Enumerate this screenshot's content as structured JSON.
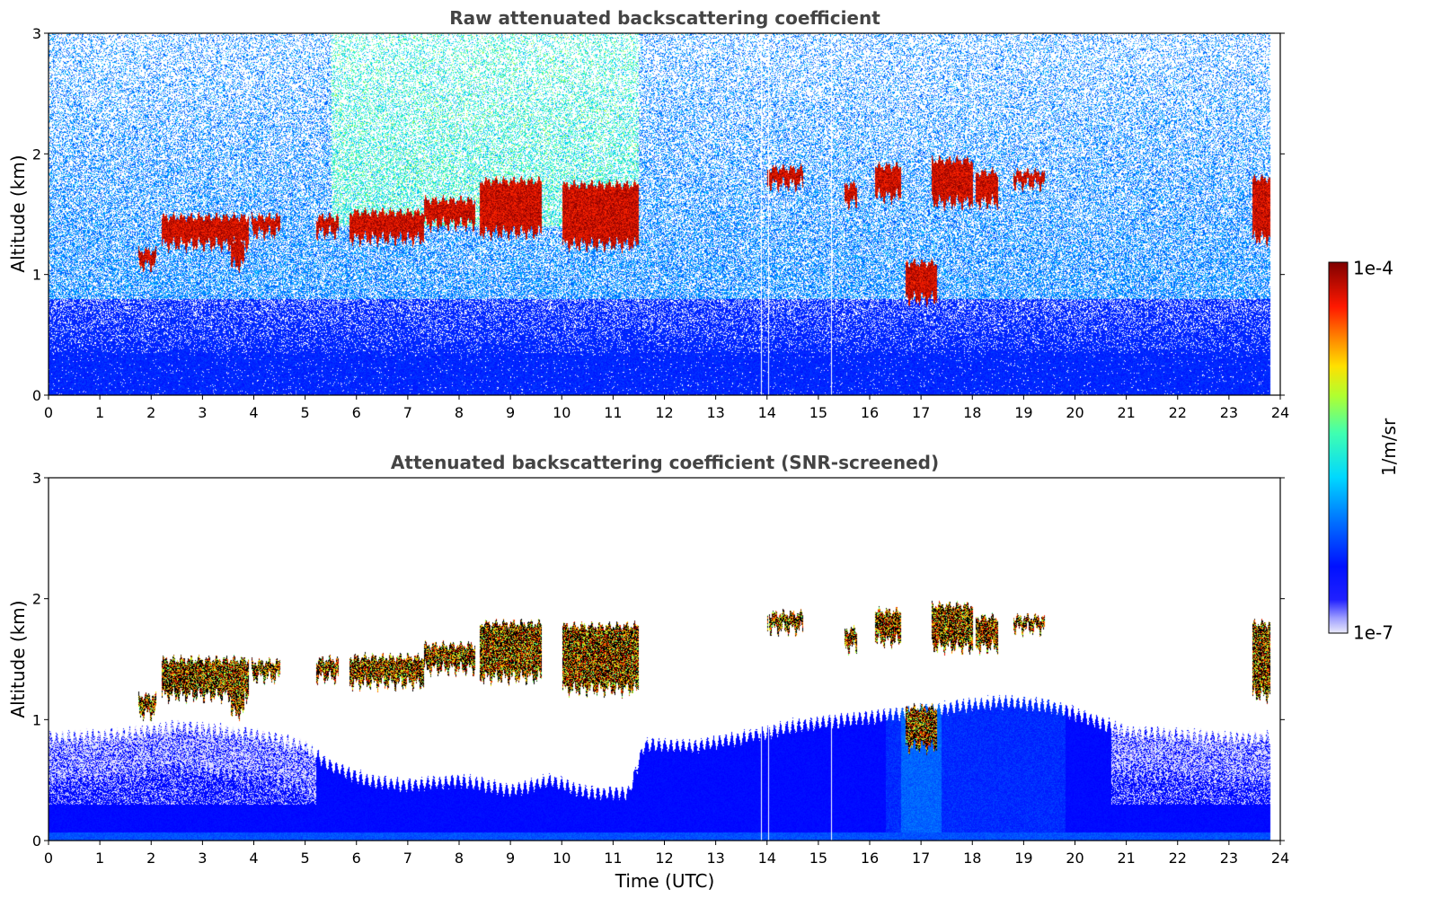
{
  "chart_data": [
    {
      "type": "heatmap",
      "title": "Raw attenuated backscattering coefficient",
      "xlabel": "",
      "ylabel": "Altitude (km)",
      "xlim": [
        0,
        24
      ],
      "ylim": [
        0,
        3
      ],
      "x_ticks": [
        "0",
        "1",
        "2",
        "3",
        "4",
        "5",
        "6",
        "7",
        "8",
        "9",
        "10",
        "11",
        "12",
        "13",
        "14",
        "15",
        "16",
        "17",
        "18",
        "19",
        "20",
        "21",
        "22",
        "23",
        "24"
      ],
      "y_ticks": [
        "0",
        "1",
        "2",
        "3"
      ],
      "data_end_hour": 23.8,
      "gaps_hours": [
        13.88,
        14.02,
        15.25
      ],
      "aerosol_layer_top_km": 0.8,
      "noise_level": "high",
      "cloud_layers": [
        {
          "start": 1.75,
          "end": 2.1,
          "base_km": 1.08,
          "top_km": 1.2
        },
        {
          "start": 2.2,
          "end": 3.9,
          "base_km": 1.25,
          "top_km": 1.48
        },
        {
          "start": 3.55,
          "end": 3.8,
          "base_km": 1.08,
          "top_km": 1.25
        },
        {
          "start": 3.95,
          "end": 4.5,
          "base_km": 1.35,
          "top_km": 1.48
        },
        {
          "start": 5.2,
          "end": 5.65,
          "base_km": 1.35,
          "top_km": 1.48
        },
        {
          "start": 5.85,
          "end": 7.3,
          "base_km": 1.3,
          "top_km": 1.52
        },
        {
          "start": 7.3,
          "end": 8.3,
          "base_km": 1.42,
          "top_km": 1.62
        },
        {
          "start": 8.4,
          "end": 9.6,
          "base_km": 1.35,
          "top_km": 1.78
        },
        {
          "start": 10.0,
          "end": 11.5,
          "base_km": 1.25,
          "top_km": 1.75
        },
        {
          "start": 14.0,
          "end": 14.7,
          "base_km": 1.75,
          "top_km": 1.88
        },
        {
          "start": 15.5,
          "end": 15.75,
          "base_km": 1.6,
          "top_km": 1.75
        },
        {
          "start": 16.1,
          "end": 16.6,
          "base_km": 1.65,
          "top_km": 1.9
        },
        {
          "start": 16.7,
          "end": 17.3,
          "base_km": 0.8,
          "top_km": 1.1
        },
        {
          "start": 17.2,
          "end": 18.0,
          "base_km": 1.6,
          "top_km": 1.95
        },
        {
          "start": 18.05,
          "end": 18.5,
          "base_km": 1.6,
          "top_km": 1.85
        },
        {
          "start": 18.8,
          "end": 19.4,
          "base_km": 1.75,
          "top_km": 1.85
        },
        {
          "start": 23.45,
          "end": 23.8,
          "base_km": 1.3,
          "top_km": 1.8
        }
      ]
    },
    {
      "type": "heatmap",
      "title": "Attenuated backscattering coefficient (SNR-screened)",
      "xlabel": "Time (UTC)",
      "ylabel": "Altitude (km)",
      "xlim": [
        0,
        24
      ],
      "ylim": [
        0,
        3
      ],
      "x_ticks": [
        "0",
        "1",
        "2",
        "3",
        "4",
        "5",
        "6",
        "7",
        "8",
        "9",
        "10",
        "11",
        "12",
        "13",
        "14",
        "15",
        "16",
        "17",
        "18",
        "19",
        "20",
        "21",
        "22",
        "23",
        "24"
      ],
      "y_ticks": [
        "0",
        "1",
        "2",
        "3"
      ],
      "data_end_hour": 23.8,
      "gaps_hours": [
        13.88,
        14.02,
        15.25
      ],
      "noise_level": "screened",
      "aerosol_top_profile": [
        [
          0,
          0.85
        ],
        [
          1.5,
          0.88
        ],
        [
          2.5,
          0.95
        ],
        [
          4.0,
          0.88
        ],
        [
          5.0,
          0.78
        ],
        [
          5.5,
          0.62
        ],
        [
          6.2,
          0.5
        ],
        [
          7.0,
          0.46
        ],
        [
          8.0,
          0.5
        ],
        [
          9.0,
          0.42
        ],
        [
          9.8,
          0.5
        ],
        [
          10.5,
          0.4
        ],
        [
          11.3,
          0.4
        ],
        [
          11.6,
          0.8
        ],
        [
          12.5,
          0.78
        ],
        [
          13.5,
          0.85
        ],
        [
          14.5,
          0.95
        ],
        [
          15.5,
          1.0
        ],
        [
          16.5,
          1.05
        ],
        [
          17.5,
          1.1
        ],
        [
          18.5,
          1.15
        ],
        [
          19.5,
          1.12
        ],
        [
          20.0,
          1.05
        ],
        [
          21.0,
          0.9
        ],
        [
          22.0,
          0.88
        ],
        [
          23.0,
          0.85
        ],
        [
          23.8,
          0.85
        ]
      ],
      "cloud_layers": [
        {
          "start": 1.75,
          "end": 2.1,
          "base_km": 1.05,
          "top_km": 1.2
        },
        {
          "start": 2.2,
          "end": 3.9,
          "base_km": 1.2,
          "top_km": 1.5
        },
        {
          "start": 3.55,
          "end": 3.8,
          "base_km": 1.05,
          "top_km": 1.25
        },
        {
          "start": 3.95,
          "end": 4.5,
          "base_km": 1.35,
          "top_km": 1.48
        },
        {
          "start": 5.2,
          "end": 5.65,
          "base_km": 1.35,
          "top_km": 1.5
        },
        {
          "start": 5.85,
          "end": 7.3,
          "base_km": 1.3,
          "top_km": 1.52
        },
        {
          "start": 7.3,
          "end": 8.3,
          "base_km": 1.42,
          "top_km": 1.62
        },
        {
          "start": 8.4,
          "end": 9.6,
          "base_km": 1.35,
          "top_km": 1.8
        },
        {
          "start": 10.0,
          "end": 11.5,
          "base_km": 1.25,
          "top_km": 1.78
        },
        {
          "start": 14.0,
          "end": 14.7,
          "base_km": 1.75,
          "top_km": 1.88
        },
        {
          "start": 15.5,
          "end": 15.75,
          "base_km": 1.6,
          "top_km": 1.75
        },
        {
          "start": 16.1,
          "end": 16.6,
          "base_km": 1.65,
          "top_km": 1.9
        },
        {
          "start": 16.7,
          "end": 17.3,
          "base_km": 0.78,
          "top_km": 1.1
        },
        {
          "start": 17.2,
          "end": 18.0,
          "base_km": 1.6,
          "top_km": 1.95
        },
        {
          "start": 18.05,
          "end": 18.5,
          "base_km": 1.6,
          "top_km": 1.85
        },
        {
          "start": 18.8,
          "end": 19.4,
          "base_km": 1.75,
          "top_km": 1.85
        },
        {
          "start": 23.45,
          "end": 23.8,
          "base_km": 1.2,
          "top_km": 1.8
        }
      ]
    }
  ],
  "colorbar": {
    "label": "1/m/sr",
    "max_label": "1e-4",
    "min_label": "1e-7",
    "scale": "log",
    "range": [
      1e-07,
      0.0001
    ],
    "colormap": "jet",
    "colors": [
      "#e8e8f8",
      "#7f7fff",
      "#0000ff",
      "#0080ff",
      "#00e0ff",
      "#40ff80",
      "#c0ff00",
      "#ffe000",
      "#ff8000",
      "#ff0000",
      "#a00000",
      "#7f0000"
    ]
  }
}
